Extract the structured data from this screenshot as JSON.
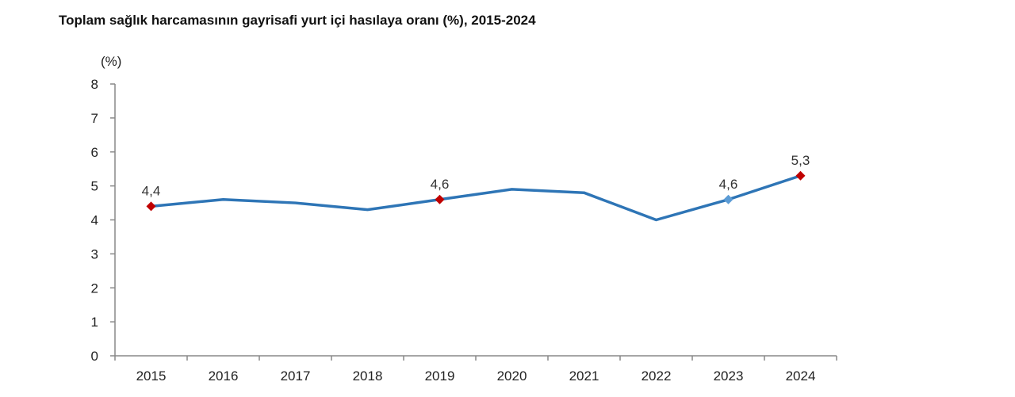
{
  "chart_data": {
    "type": "line",
    "title": "Toplam sağlık harcamasının gayrisafi yurt içi hasılaya oranı (%), 2015-2024",
    "ylabel": "(%)",
    "xlabel": "",
    "categories": [
      "2015",
      "2016",
      "2017",
      "2018",
      "2019",
      "2020",
      "2021",
      "2022",
      "2023",
      "2024"
    ],
    "values": [
      4.4,
      4.6,
      4.5,
      4.3,
      4.6,
      4.9,
      4.8,
      4.0,
      4.6,
      5.3
    ],
    "data_labels": [
      {
        "category": "2015",
        "text": "4,4"
      },
      {
        "category": "2019",
        "text": "4,6"
      },
      {
        "category": "2023",
        "text": "4,6"
      },
      {
        "category": "2024",
        "text": "5,3"
      }
    ],
    "markers": [
      {
        "category": "2015",
        "color": "#c00000"
      },
      {
        "category": "2019",
        "color": "#c00000"
      },
      {
        "category": "2023",
        "color": "#5b9bd5"
      },
      {
        "category": "2024",
        "color": "#c00000"
      }
    ],
    "ylim": [
      0,
      8
    ],
    "yticks": [
      "0",
      "1",
      "2",
      "3",
      "4",
      "5",
      "6",
      "7",
      "8"
    ],
    "grid": false,
    "line_color": "#2e75b6"
  }
}
